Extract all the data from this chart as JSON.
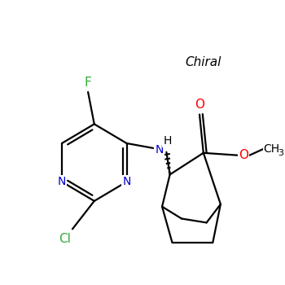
{
  "background_color": "#ffffff",
  "chiral_label": "Chiral",
  "atom_colors": {
    "N": "#0000cc",
    "O": "#ff0000",
    "F": "#33aa33",
    "Cl": "#33aa33",
    "C": "#000000",
    "H": "#000000"
  },
  "bond_color": "#000000",
  "bond_width": 1.6
}
